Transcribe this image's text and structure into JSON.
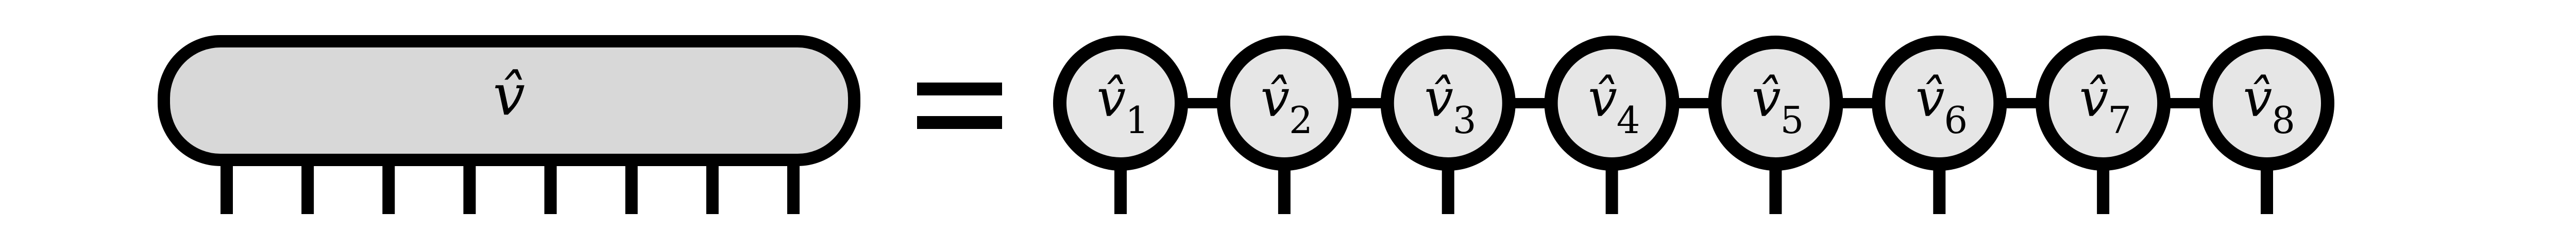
{
  "diagram": {
    "colors": {
      "stroke": "#000000",
      "fill": "#d8d8d8",
      "node_fill": "#e6e6e6",
      "background": "#ffffff"
    },
    "left_tensor": {
      "symbol": "v̂",
      "legs": 8
    },
    "equals_symbol": "=",
    "mps_nodes": [
      {
        "base": "v̂",
        "sub": "1"
      },
      {
        "base": "v̂",
        "sub": "2"
      },
      {
        "base": "v̂",
        "sub": "3"
      },
      {
        "base": "v̂",
        "sub": "4"
      },
      {
        "base": "v̂",
        "sub": "5"
      },
      {
        "base": "v̂",
        "sub": "6"
      },
      {
        "base": "v̂",
        "sub": "7"
      },
      {
        "base": "v̂",
        "sub": "8"
      }
    ]
  }
}
